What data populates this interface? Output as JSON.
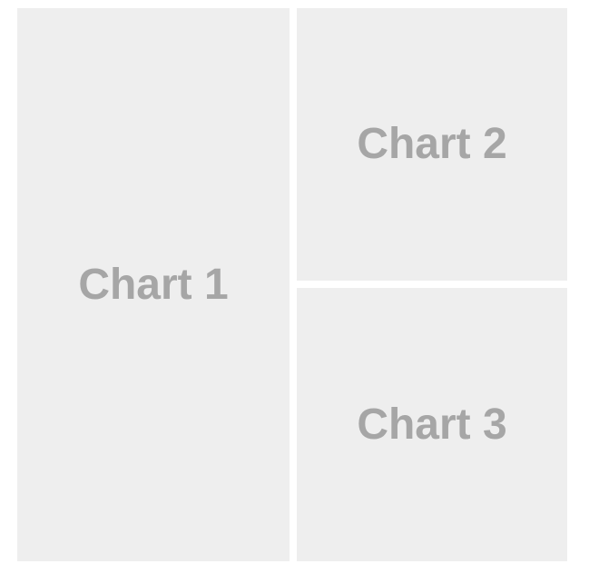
{
  "panels": [
    {
      "label": "Chart 1"
    },
    {
      "label": "Chart 2"
    },
    {
      "label": "Chart 3"
    }
  ],
  "colors": {
    "background": "#ffffff",
    "panel_fill": "#eeeeee",
    "label_text": "#a6a6a6"
  }
}
